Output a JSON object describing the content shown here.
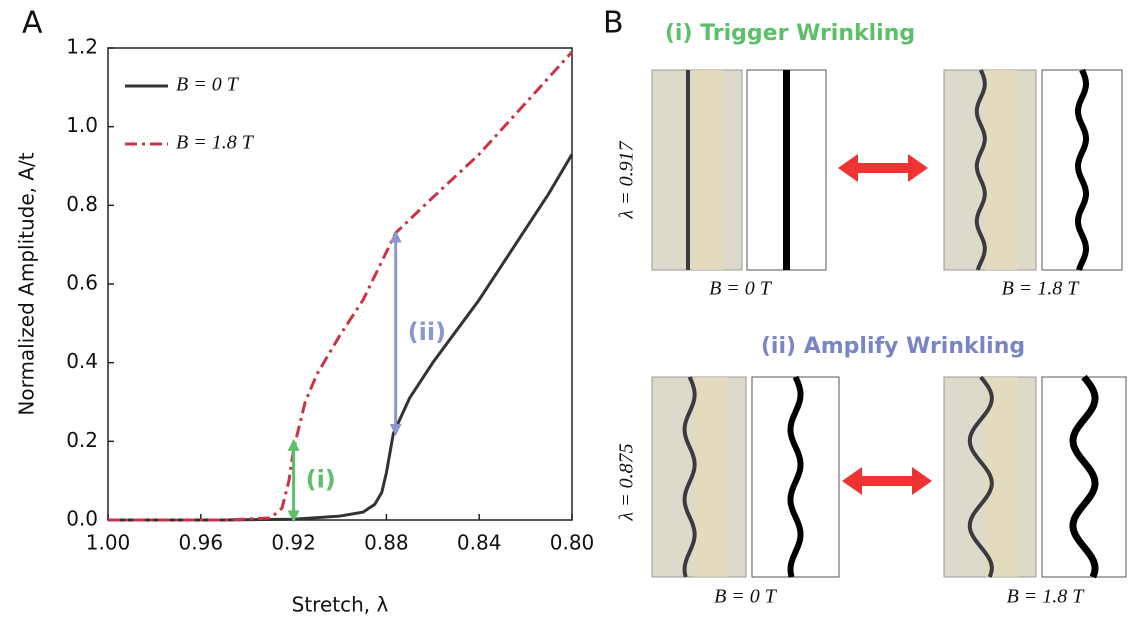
{
  "panel_labels": [
    "A",
    "B"
  ],
  "chart_data": {
    "type": "line",
    "xlabel": "Stretch, λ",
    "ylabel": "Normalized Amplitude, A/t",
    "xlim": [
      1.0,
      0.8
    ],
    "xticks": [
      {
        "value": 1.0,
        "label": "1.00"
      },
      0.96,
      0.92,
      0.88,
      0.84,
      {
        "value": 0.8,
        "label": "0.80"
      }
    ],
    "ylim": [
      0,
      1.2
    ],
    "yticks": [
      {
        "value": 0,
        "label": "0.0"
      },
      0.2,
      0.4,
      0.6,
      0.8,
      {
        "value": 1,
        "label": "1.0"
      },
      1.2
    ],
    "legend": "upper-left",
    "series": [
      {
        "name": "B = 0 T",
        "color": "#333333",
        "dash": "solid",
        "x": [
          1.0,
          0.95,
          0.92,
          0.9,
          0.89,
          0.885,
          0.882,
          0.88,
          0.877,
          0.87,
          0.86,
          0.85,
          0.84,
          0.83,
          0.82,
          0.81,
          0.8
        ],
        "values": [
          0,
          0,
          0.002,
          0.01,
          0.02,
          0.04,
          0.07,
          0.12,
          0.22,
          0.31,
          0.4,
          0.48,
          0.56,
          0.65,
          0.74,
          0.83,
          0.93
        ]
      },
      {
        "name": "B = 1.8 T",
        "color": "#cc3344",
        "dash": "dashdot",
        "x": [
          1.0,
          0.95,
          0.93,
          0.925,
          0.922,
          0.92,
          0.915,
          0.91,
          0.9,
          0.89,
          0.876,
          0.86,
          0.84,
          0.82,
          0.8
        ],
        "values": [
          0,
          0,
          0.005,
          0.03,
          0.1,
          0.18,
          0.3,
          0.37,
          0.47,
          0.56,
          0.73,
          0.82,
          0.93,
          1.06,
          1.19
        ]
      }
    ],
    "annotations": [
      {
        "text": "(i)",
        "x": 0.92,
        "y_from": 0,
        "y_to": 0.2,
        "color": "#5cbf6a"
      },
      {
        "text": "(ii)",
        "x": 0.876,
        "y_from": 0.22,
        "y_to": 0.73,
        "color": "#8a96cc"
      }
    ]
  },
  "panel_b": {
    "rows": [
      {
        "title": "(i) Trigger Wrinkling",
        "stretch_label": "λ = 0.917",
        "left_label": "B = 0 T",
        "right_label": "B = 1.8 T"
      },
      {
        "title": "(ii) Amplify Wrinkling",
        "stretch_label": "λ = 0.875",
        "left_label": "B = 0 T",
        "right_label": "B = 1.8 T"
      }
    ]
  }
}
